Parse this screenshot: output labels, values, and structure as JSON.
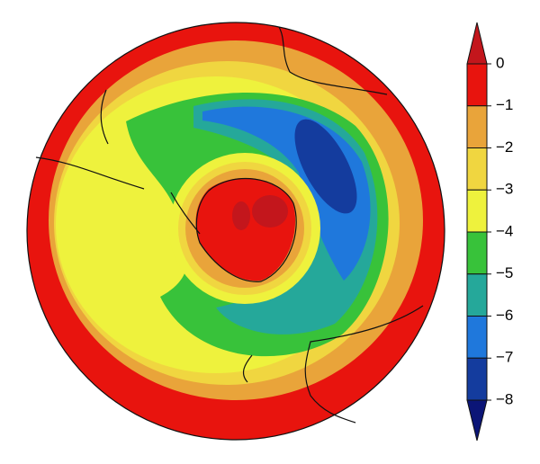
{
  "colorbar": {
    "ticks": [
      0,
      {
        "value": -1,
        "label": "−1"
      },
      {
        "value": -2,
        "label": "−2"
      },
      {
        "value": -3,
        "label": "−3"
      },
      {
        "value": -4,
        "label": "−4"
      },
      {
        "value": -5,
        "label": "−5"
      },
      {
        "value": -6,
        "label": "−6"
      },
      {
        "value": -7,
        "label": "−7"
      },
      {
        "value": -8,
        "label": "−8"
      }
    ],
    "lim": [
      -8,
      0
    ],
    "over_color": "#c3161c",
    "under_color": "#0b1577",
    "colors": [
      "#e8140e",
      "#e9a43a",
      "#f0d640",
      "#eef23d",
      "#38c23a",
      "#25a89a",
      "#1f78dc",
      "#143c9e"
    ]
  }
}
